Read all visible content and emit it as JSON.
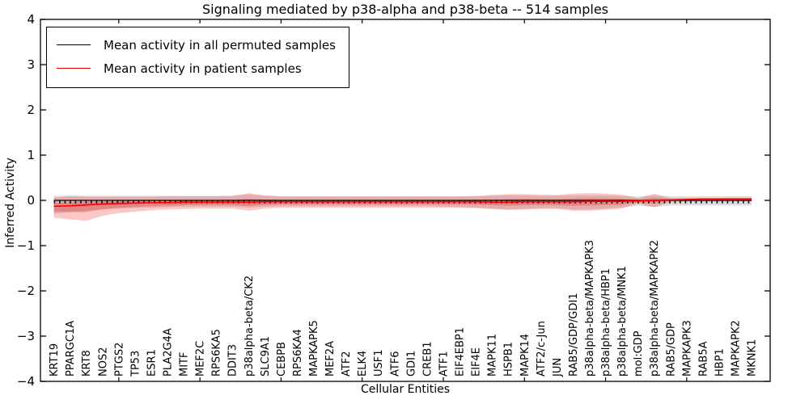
{
  "title": "Signaling mediated by p38-alpha and p38-beta -- 514 samples",
  "legend": {
    "entries": [
      {
        "label": "Mean activity in all permuted samples",
        "color": "#000000"
      },
      {
        "label": "Mean activity in patient samples",
        "color": "#ff0000"
      }
    ]
  },
  "chart_data": {
    "type": "line",
    "title": "Signaling mediated by p38-alpha and p38-beta -- 514 samples",
    "xlabel": "Cellular Entities",
    "ylabel": "Inferred Activity",
    "ylim": [
      -4,
      4
    ],
    "yticks": [
      -4,
      -3,
      -2,
      -1,
      0,
      1,
      2,
      3,
      4
    ],
    "grid": false,
    "legend_position": "upper left",
    "categories": [
      "KRT19",
      "PPARGC1A",
      "KRT8",
      "NOS2",
      "PTGS2",
      "TP53",
      "ESR1",
      "PLA2G4A",
      "MITF",
      "MEF2C",
      "RPS6KA5",
      "DDIT3",
      "p38alpha-beta/CK2",
      "SLC9A1",
      "CEBPB",
      "RPS6KA4",
      "MAPKAPK5",
      "MEF2A",
      "ATF2",
      "ELK4",
      "USF1",
      "ATF6",
      "GDI1",
      "CREB1",
      "ATF1",
      "EIF4EBP1",
      "EIF4E",
      "MAPK11",
      "HSPB1",
      "MAPK14",
      "ATF2/c-Jun",
      "JUN",
      "RAB5/GDP/GDI1",
      "p38alpha-beta/MAPKAPK3",
      "p38alpha-beta/HBP1",
      "p38alpha-beta/MNK1",
      "mol:GDP",
      "p38alpha-beta/MAPKAPK2",
      "RAB5/GDP",
      "MAPKAPK3",
      "RAB5A",
      "HBP1",
      "MAPKAPK2",
      "MKNK1"
    ],
    "series": [
      {
        "name": "Mean activity in all permuted samples",
        "color": "#000000",
        "band_color": "rgba(130,130,130,0.28)",
        "values": [
          0,
          0,
          0,
          0,
          0,
          0,
          0,
          0,
          0,
          0,
          0,
          0,
          0,
          0,
          0,
          0,
          0,
          0,
          0,
          0,
          0,
          0,
          0,
          0,
          0,
          0,
          0,
          0,
          0,
          0,
          0,
          0,
          0,
          0,
          0,
          0,
          0,
          0,
          0,
          0,
          0,
          0,
          0,
          0
        ],
        "band_upper": [
          0.1,
          0.11,
          0.1,
          0.1,
          0.1,
          0.1,
          0.1,
          0.1,
          0.1,
          0.1,
          0.1,
          0.1,
          0.13,
          0.1,
          0.09,
          0.09,
          0.09,
          0.09,
          0.09,
          0.09,
          0.09,
          0.09,
          0.09,
          0.09,
          0.09,
          0.09,
          0.09,
          0.1,
          0.11,
          0.11,
          0.1,
          0.1,
          0.11,
          0.11,
          0.11,
          0.1,
          0.08,
          0.11,
          0.09,
          0.09,
          0.09,
          0.09,
          0.09,
          0.09
        ],
        "band_lower": [
          -0.3,
          -0.26,
          -0.23,
          -0.2,
          -0.18,
          -0.17,
          -0.16,
          -0.15,
          -0.14,
          -0.14,
          -0.14,
          -0.14,
          -0.16,
          -0.14,
          -0.13,
          -0.13,
          -0.13,
          -0.13,
          -0.13,
          -0.13,
          -0.13,
          -0.13,
          -0.13,
          -0.13,
          -0.14,
          -0.15,
          -0.16,
          -0.18,
          -0.2,
          -0.19,
          -0.17,
          -0.17,
          -0.2,
          -0.2,
          -0.18,
          -0.16,
          -0.11,
          -0.15,
          -0.11,
          -0.11,
          -0.11,
          -0.11,
          -0.11,
          -0.11
        ]
      },
      {
        "name": "Mean activity in patient samples",
        "color": "#ff0000",
        "band_color": "rgba(244,70,70,0.30)",
        "values": [
          -0.13,
          -0.12,
          -0.1,
          -0.08,
          -0.07,
          -0.06,
          -0.05,
          -0.05,
          -0.04,
          -0.04,
          -0.04,
          -0.04,
          -0.04,
          -0.03,
          -0.03,
          -0.03,
          -0.03,
          -0.03,
          -0.03,
          -0.03,
          -0.03,
          -0.03,
          -0.03,
          -0.03,
          -0.03,
          -0.03,
          -0.03,
          -0.04,
          -0.04,
          -0.03,
          -0.03,
          -0.03,
          -0.03,
          -0.02,
          -0.02,
          -0.02,
          -0.01,
          0.0,
          0.01,
          0.02,
          0.03,
          0.03,
          0.03,
          0.03
        ],
        "band_upper": [
          0.06,
          0.09,
          0.08,
          0.08,
          0.08,
          0.08,
          0.08,
          0.09,
          0.09,
          0.09,
          0.09,
          0.1,
          0.16,
          0.11,
          0.09,
          0.09,
          0.09,
          0.09,
          0.09,
          0.09,
          0.09,
          0.09,
          0.09,
          0.09,
          0.09,
          0.09,
          0.1,
          0.12,
          0.14,
          0.14,
          0.13,
          0.12,
          0.15,
          0.16,
          0.15,
          0.13,
          0.05,
          0.15,
          0.05,
          0.05,
          0.05,
          0.05,
          0.06,
          0.06
        ],
        "band_lower": [
          -0.38,
          -0.42,
          -0.45,
          -0.34,
          -0.28,
          -0.25,
          -0.22,
          -0.2,
          -0.19,
          -0.18,
          -0.18,
          -0.18,
          -0.23,
          -0.18,
          -0.16,
          -0.16,
          -0.16,
          -0.16,
          -0.16,
          -0.16,
          -0.16,
          -0.16,
          -0.16,
          -0.16,
          -0.16,
          -0.16,
          -0.17,
          -0.19,
          -0.21,
          -0.2,
          -0.19,
          -0.19,
          -0.23,
          -0.23,
          -0.21,
          -0.18,
          -0.07,
          -0.15,
          -0.04,
          -0.03,
          -0.03,
          -0.03,
          -0.02,
          -0.02
        ]
      }
    ]
  }
}
